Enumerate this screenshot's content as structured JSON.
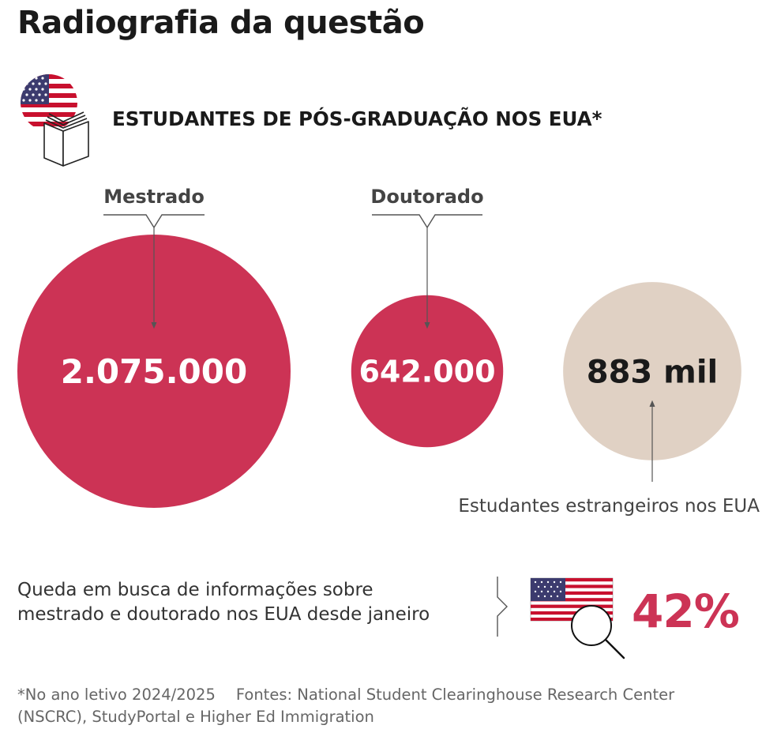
{
  "title": "Radiografia da questão",
  "subtitle": "ESTUDANTES DE PÓS-GRADUAÇÃO NOS EUA*",
  "colors": {
    "bubble_main": "#cc3355",
    "bubble_foreign": "#e0d1c4",
    "accent_percent": "#cc3355",
    "text_dark": "#1a1a1a",
    "text_muted": "#444444",
    "footnote": "#666666"
  },
  "icons": [
    "us-flag-circle-icon",
    "open-book-icon",
    "us-flag-icon",
    "magnifier-icon"
  ],
  "chart_data": {
    "type": "bubble",
    "title": "ESTUDANTES DE PÓS-GRADUAÇÃO NOS EUA*",
    "series": [
      {
        "name": "Mestrado",
        "label": "Mestrado",
        "value": 2075000,
        "value_label": "2.075.000",
        "color": "#cc3355"
      },
      {
        "name": "Doutorado",
        "label": "Doutorado",
        "value": 642000,
        "value_label": "642.000",
        "color": "#cc3355"
      },
      {
        "name": "Estudantes estrangeiros nos EUA",
        "label": "Estudantes estrangeiros nos EUA",
        "value": 883000,
        "value_label": "883 mil",
        "color": "#e0d1c4"
      }
    ]
  },
  "highlight": {
    "text_line1": "Queda em busca de informações sobre",
    "text_line2": "mestrado e doutorado nos EUA desde janeiro",
    "value": "42%",
    "percent": 42
  },
  "footnote": {
    "note": "*No ano letivo 2024/2025",
    "sources_line1": "Fontes: National Student Clearinghouse Research Center",
    "sources_line2": "(NSCRC), StudyPortal e Higher Ed Immigration"
  }
}
